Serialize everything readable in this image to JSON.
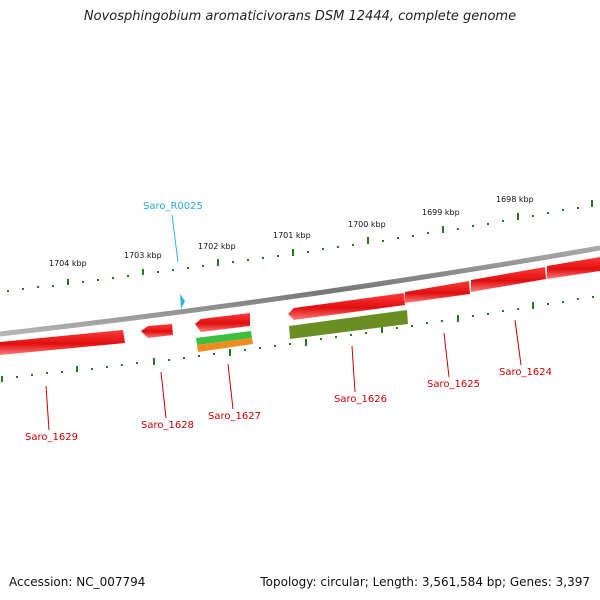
{
  "title": "Novosphingobium aromaticivorans DSM 12444, complete genome",
  "footer": {
    "accession": "Accession: NC_007794",
    "summary": "Topology: circular; Length: 3,561,584 bp; Genes: 3,397"
  },
  "colors": {
    "gene_cds": "#e81818",
    "gene_olive": "#6b8e23",
    "rna": "#29b6e6",
    "gene_label": "#cc0000",
    "rna_label": "#2aa8d8",
    "tick": "#1e7b1e",
    "backbone": "#8a8a8a"
  },
  "scale_labels": [
    "1704 kbp",
    "1703 kbp",
    "1702 kbp",
    "1701 kbp",
    "1700 kbp",
    "1699 kbp",
    "1698 kbp"
  ],
  "genes": [
    "Saro_1629",
    "Saro_1628",
    "Saro_1627",
    "Saro_1626",
    "Saro_1625",
    "Saro_1624"
  ],
  "rna": "Saro_R0025"
}
